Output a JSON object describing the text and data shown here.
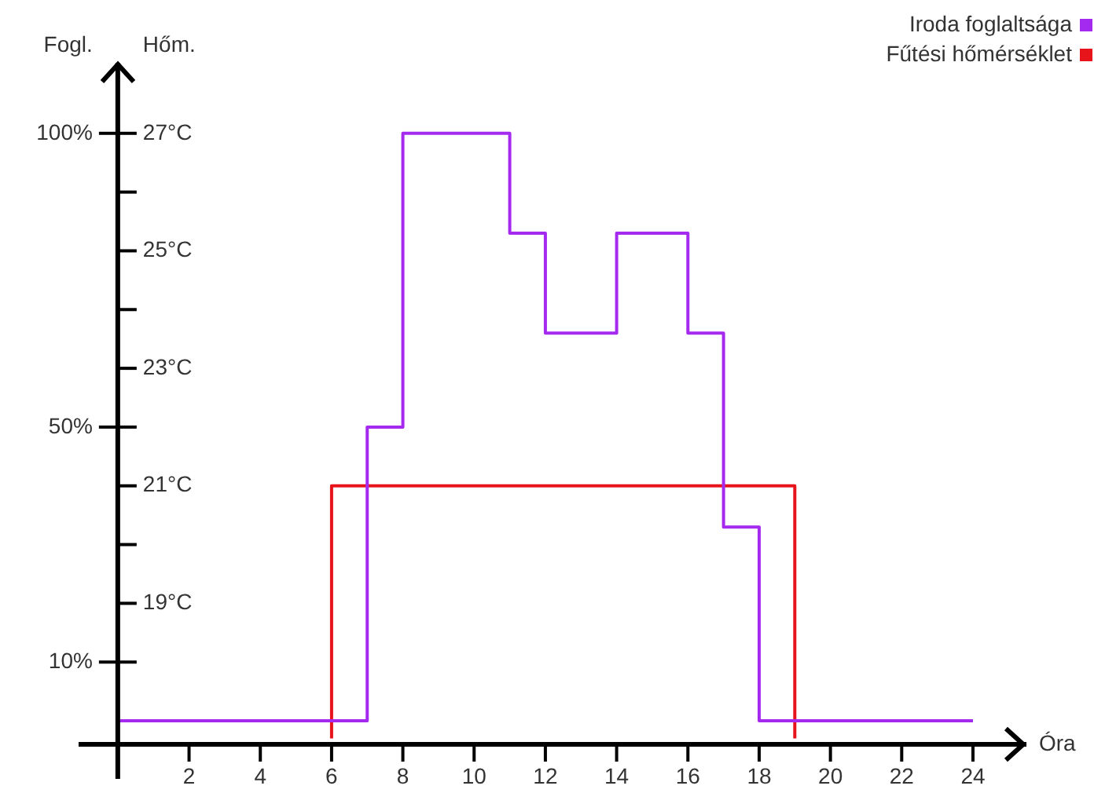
{
  "chart_data": {
    "type": "step",
    "xlabel": "Óra",
    "ylabel": "Fogl.",
    "y2label": "Hőm.",
    "xlim": [
      -1.1,
      25.5
    ],
    "xticks": [
      2,
      4,
      6,
      8,
      10,
      12,
      14,
      16,
      18,
      20,
      22,
      24
    ],
    "ylim": [
      -4,
      112
    ],
    "yticks": [
      {
        "value": 10,
        "label": "10%"
      },
      {
        "value": 50,
        "label": "50%"
      },
      {
        "value": 100,
        "label": "100%"
      }
    ],
    "y2lim": [
      16.6,
      28.2
    ],
    "y2ticks": [
      {
        "value": 18,
        "label": null
      },
      {
        "value": 19,
        "label": "19°C"
      },
      {
        "value": 20,
        "label": null
      },
      {
        "value": 21,
        "label": "21°C"
      },
      {
        "value": 22,
        "label": null
      },
      {
        "value": 23,
        "label": "23°C"
      },
      {
        "value": 24,
        "label": null
      },
      {
        "value": 25,
        "label": "25°C"
      },
      {
        "value": 26,
        "label": null
      },
      {
        "value": 27,
        "label": "27°C"
      }
    ],
    "legend": "top right",
    "grid": false,
    "series": [
      {
        "name": "Iroda foglaltsága",
        "color": "#a52af0",
        "x": [
          0,
          7,
          8,
          11,
          12,
          14,
          16,
          17,
          18,
          24
        ],
        "values": [
          0,
          50,
          100,
          83,
          66,
          83,
          66,
          33,
          0,
          0
        ]
      },
      {
        "name": "Fűtési hőmérséklet",
        "color": "#e8141c",
        "axis": "y2",
        "x": [
          6,
          6,
          19
        ],
        "values": [
          16.7,
          21,
          16.7
        ]
      }
    ]
  }
}
